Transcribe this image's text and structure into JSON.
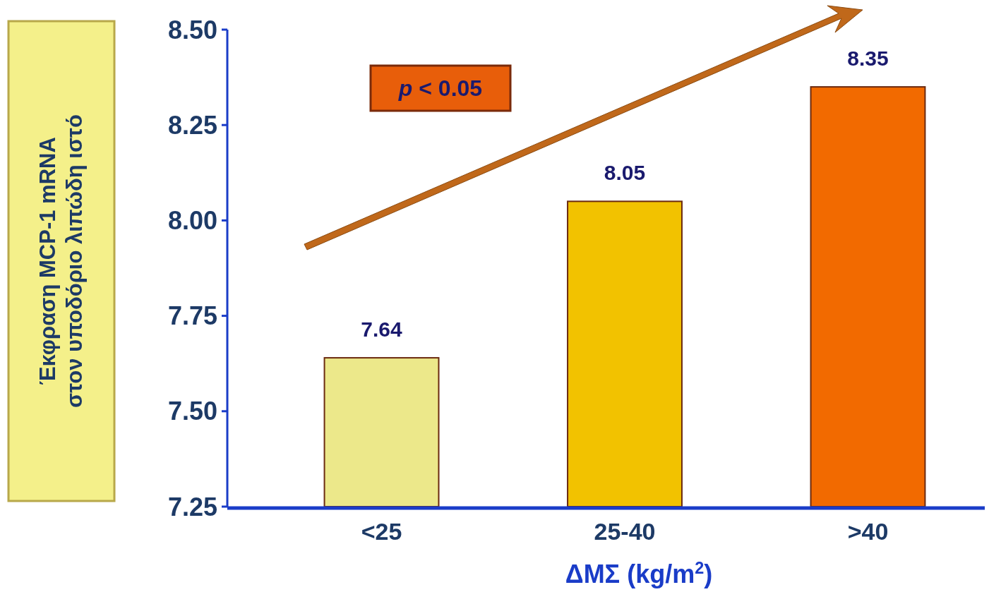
{
  "chart_data": {
    "type": "bar",
    "categories": [
      "<25",
      "25-40",
      ">40"
    ],
    "values": [
      7.64,
      8.05,
      8.35
    ],
    "colors": [
      "#ece88a",
      "#f2c200",
      "#f26a00"
    ],
    "ylim": [
      7.25,
      8.5
    ],
    "yticks": [
      {
        "value": 7.25,
        "label": "7.25"
      },
      {
        "value": 7.5,
        "label": "7.50"
      },
      {
        "value": 7.75,
        "label": "7.75"
      },
      {
        "value": 8.0,
        "label": "8.00"
      },
      {
        "value": 8.25,
        "label": "8.25"
      },
      {
        "value": 8.5,
        "label": "8.50"
      }
    ],
    "data_labels": true,
    "xlabel": "ΔΜΣ (kg/m$^{2}$)",
    "ylabel": "Έκφραση MCP-1 mRNA\nστον υποδόριο λιπώδη ιστό",
    "annotations": [
      "p < 0.05"
    ],
    "grid": false
  }
}
